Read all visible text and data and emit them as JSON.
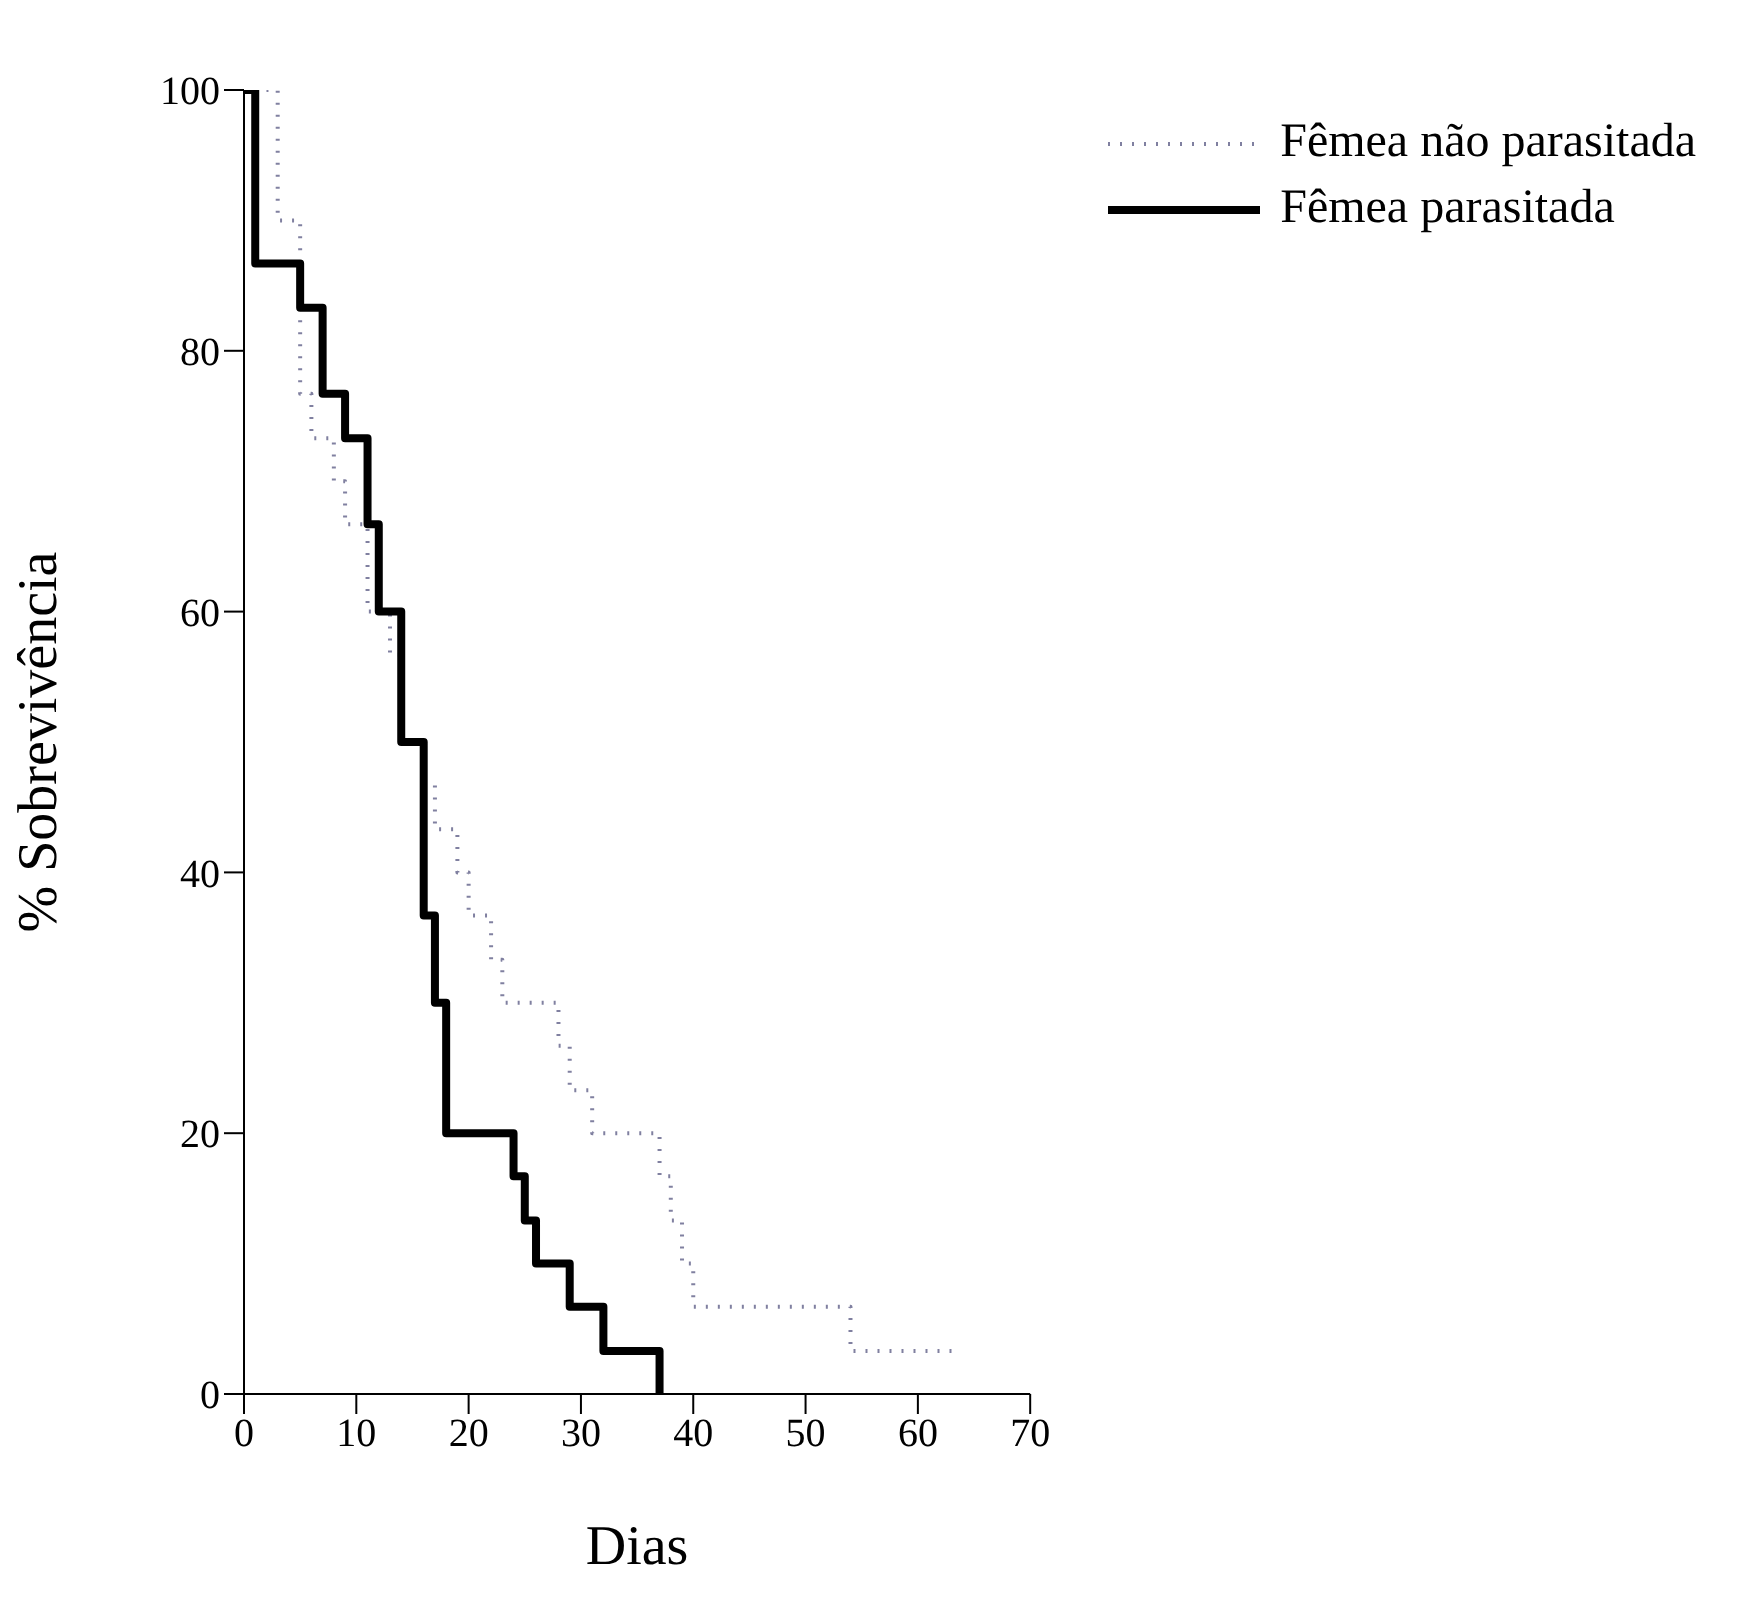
{
  "chart_data": {
    "type": "step",
    "xlabel": "Dias",
    "ylabel": "% Sobrevivência",
    "xlim": [
      0,
      70
    ],
    "xticks": [
      0,
      10,
      20,
      30,
      40,
      50,
      60,
      70
    ],
    "ylim": [
      0,
      100
    ],
    "yticks": [
      0,
      20,
      40,
      60,
      80,
      100
    ],
    "grid": false,
    "legend": "top right",
    "marker": "none",
    "series": [
      {
        "name": "Fêmea não parasitada",
        "color": "#8080a0",
        "line_style": "dotted",
        "x": [
          2,
          3,
          5,
          6,
          8,
          9,
          11,
          13,
          14,
          16,
          17,
          19,
          20,
          22,
          23,
          28,
          29,
          31,
          37,
          38,
          39,
          40,
          54,
          63
        ],
        "values": [
          100,
          90,
          76.7,
          73.3,
          70,
          66.7,
          60,
          56.7,
          50,
          46.7,
          43.3,
          40,
          36.7,
          33.3,
          30,
          26.7,
          23.3,
          20,
          16.7,
          13.3,
          10,
          6.7,
          3.3,
          3.3
        ]
      },
      {
        "name": "Fêmea parasitada",
        "color": "#000000",
        "line_style": "solid",
        "x": [
          0,
          1,
          5,
          7,
          9,
          11,
          12,
          14,
          16,
          17,
          18,
          24,
          25,
          26,
          29,
          32,
          37
        ],
        "values": [
          100,
          86.7,
          83.3,
          76.7,
          73.3,
          66.7,
          60,
          50,
          36.7,
          30,
          20,
          16.7,
          13.3,
          10,
          6.7,
          3.3,
          0
        ]
      }
    ]
  }
}
